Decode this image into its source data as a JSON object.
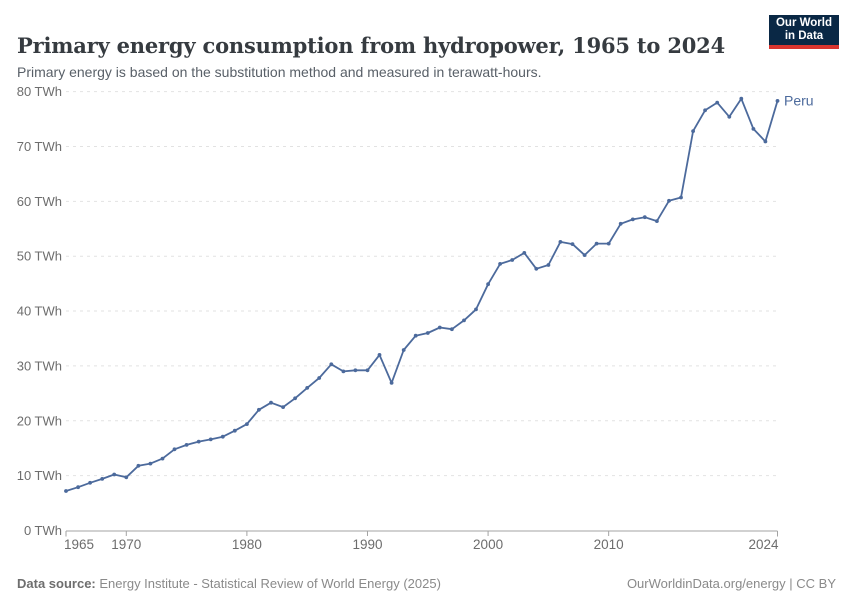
{
  "header": {
    "title": "Primary energy consumption from hydropower, 1965 to 2024",
    "subtitle": "Primary energy is based on the substitution method and measured in terawatt-hours.",
    "logo": {
      "line1": "Our World",
      "line2": "in Data"
    }
  },
  "chart_data": {
    "type": "line",
    "title": "Primary energy consumption from hydropower, 1965 to 2024",
    "xlabel": "",
    "ylabel": "TWh",
    "xlim": [
      1965,
      2024
    ],
    "ylim": [
      0,
      80
    ],
    "grid": "horizontal-dashed",
    "legend_position": "end-of-line-label",
    "y_ticks": [
      {
        "value": 0,
        "label": "0 TWh"
      },
      {
        "value": 10,
        "label": "10 TWh"
      },
      {
        "value": 20,
        "label": "20 TWh"
      },
      {
        "value": 30,
        "label": "30 TWh"
      },
      {
        "value": 40,
        "label": "40 TWh"
      },
      {
        "value": 50,
        "label": "50 TWh"
      },
      {
        "value": 60,
        "label": "60 TWh"
      },
      {
        "value": 70,
        "label": "70 TWh"
      },
      {
        "value": 80,
        "label": "80 TWh"
      }
    ],
    "x_ticks": [
      {
        "year": 1965,
        "label": "1965",
        "align": "start"
      },
      {
        "year": 1970,
        "label": "1970",
        "align": "middle"
      },
      {
        "year": 1980,
        "label": "1980",
        "align": "middle"
      },
      {
        "year": 1990,
        "label": "1990",
        "align": "middle"
      },
      {
        "year": 2000,
        "label": "2000",
        "align": "middle"
      },
      {
        "year": 2010,
        "label": "2010",
        "align": "middle"
      },
      {
        "year": 2024,
        "label": "2024",
        "align": "end"
      }
    ],
    "series": [
      {
        "name": "Peru",
        "end_label": "Peru",
        "color": "#4C6A9C",
        "years": [
          1965,
          1966,
          1967,
          1968,
          1969,
          1970,
          1971,
          1972,
          1973,
          1974,
          1975,
          1976,
          1977,
          1978,
          1979,
          1980,
          1981,
          1982,
          1983,
          1984,
          1985,
          1986,
          1987,
          1988,
          1989,
          1990,
          1991,
          1992,
          1993,
          1994,
          1995,
          1996,
          1997,
          1998,
          1999,
          2000,
          2001,
          2002,
          2003,
          2004,
          2005,
          2006,
          2007,
          2008,
          2009,
          2010,
          2011,
          2012,
          2013,
          2014,
          2015,
          2016,
          2017,
          2018,
          2019,
          2020,
          2021,
          2022,
          2023,
          2024
        ],
        "values": [
          7.2,
          7.9,
          8.7,
          9.4,
          10.2,
          9.7,
          11.8,
          12.2,
          13.1,
          14.8,
          15.6,
          16.2,
          16.6,
          17.1,
          18.2,
          19.4,
          22.0,
          23.3,
          22.5,
          24.1,
          26.0,
          27.8,
          30.3,
          29.0,
          29.2,
          29.2,
          32.0,
          26.9,
          32.9,
          35.5,
          36.0,
          37.0,
          36.7,
          38.3,
          40.3,
          44.9,
          48.6,
          49.3,
          50.6,
          47.7,
          48.4,
          52.6,
          52.2,
          50.2,
          52.3,
          52.3,
          55.9,
          56.7,
          57.1,
          56.4,
          60.1,
          60.7,
          72.8,
          76.6,
          78.0,
          75.4,
          78.7,
          73.2,
          70.9,
          78.3
        ]
      }
    ]
  },
  "footer": {
    "source_prefix": "Data source:",
    "source_text": "Energy Institute - Statistical Review of World Energy (2025)",
    "right_text": "OurWorldinData.org/energy | CC BY"
  },
  "colors": {
    "line": "#4C6A9C",
    "grid": "#e2e2e2",
    "axis": "#a3a3a3",
    "tick_label": "#6d6d6d",
    "title": "#363b40",
    "subtitle": "#596068",
    "footer": "#8a8a8a",
    "logo_bg": "#0a2845",
    "logo_red": "#d9352f"
  }
}
